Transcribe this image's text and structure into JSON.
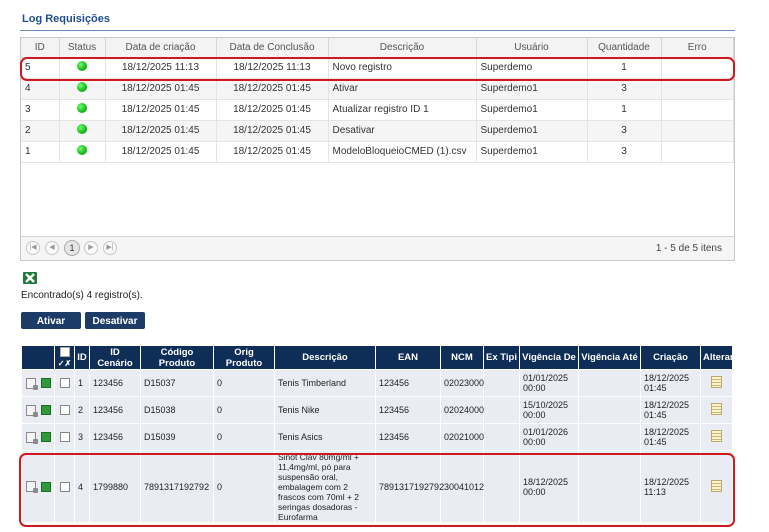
{
  "title": "Log Requisições",
  "log": {
    "headers": [
      "ID",
      "Status",
      "Data de criação",
      "Data de Conclusão",
      "Descrição",
      "Usuário",
      "Quantidade",
      "Erro"
    ],
    "rows": [
      {
        "id": "5",
        "created": "18/12/2025 11:13",
        "done": "18/12/2025 11:13",
        "desc": "Novo registro",
        "user": "Superdemo",
        "qty": "1",
        "err": ""
      },
      {
        "id": "4",
        "created": "18/12/2025 01:45",
        "done": "18/12/2025 01:45",
        "desc": "Ativar",
        "user": "Superdemo1",
        "qty": "3",
        "err": ""
      },
      {
        "id": "3",
        "created": "18/12/2025 01:45",
        "done": "18/12/2025 01:45",
        "desc": "Atualizar registro ID 1",
        "user": "Superdemo1",
        "qty": "1",
        "err": ""
      },
      {
        "id": "2",
        "created": "18/12/2025 01:45",
        "done": "18/12/2025 01:45",
        "desc": "Desativar",
        "user": "Superdemo1",
        "qty": "3",
        "err": ""
      },
      {
        "id": "1",
        "created": "18/12/2025 01:45",
        "done": "18/12/2025 01:45",
        "desc": "ModeloBloqueioCMED (1).csv",
        "user": "Superdemo1",
        "qty": "3",
        "err": ""
      }
    ],
    "pager": {
      "first": "|◀",
      "prev": "◀",
      "page": "1",
      "next": "▶",
      "last": "▶|",
      "info": "1 - 5 de 5 itens"
    }
  },
  "found_text": "Encontrado(s) 4 registro(s).",
  "buttons": {
    "activate": "Ativar",
    "deactivate": "Desativar"
  },
  "products": {
    "headers": [
      "",
      "",
      "ID",
      "ID Cenário",
      "Código Produto",
      "Orig Produto",
      "Descrição",
      "EAN",
      "NCM",
      "Ex Tipi",
      "Vigência De",
      "Vigência Até",
      "Criação",
      "Alterar"
    ],
    "check_header": "✓✗",
    "rows": [
      {
        "id": "1",
        "scenario": "123456",
        "code": "D15037",
        "orig": "0",
        "desc": "Tenis Timberland",
        "ean": "123456",
        "ncm": "02023000",
        "extipi": "",
        "from": "01/01/2025 00:00",
        "to": "",
        "created": "18/12/2025 01:45"
      },
      {
        "id": "2",
        "scenario": "123456",
        "code": "D15038",
        "orig": "0",
        "desc": "Tenis Nike",
        "ean": "123456",
        "ncm": "02024000",
        "extipi": "",
        "from": "15/10/2025 00:00",
        "to": "",
        "created": "18/12/2025 01:45"
      },
      {
        "id": "3",
        "scenario": "123456",
        "code": "D15039",
        "orig": "0",
        "desc": "Tenis Asics",
        "ean": "123456",
        "ncm": "02021000",
        "extipi": "",
        "from": "01/01/2026 00:00",
        "to": "",
        "created": "18/12/2025 01:45"
      },
      {
        "id": "4",
        "scenario": "1799880",
        "code": "7891317192792",
        "orig": "0",
        "desc": "Sinot Clav 80mg/ml + 11,4mg/ml, pó para suspensão oral, embalagem com 2 frascos com 70ml + 2 seringas dosadoras - Eurofarma",
        "ean": "7891317192792",
        "ncm": "30041012",
        "extipi": "",
        "from": "18/12/2025 00:00",
        "to": "",
        "created": "18/12/2025 11:13"
      }
    ]
  },
  "colors": {
    "header_navy": "#0f2e57",
    "highlight": "#d0191f",
    "title": "#1f4e8c",
    "status_ok": "#18b818"
  }
}
